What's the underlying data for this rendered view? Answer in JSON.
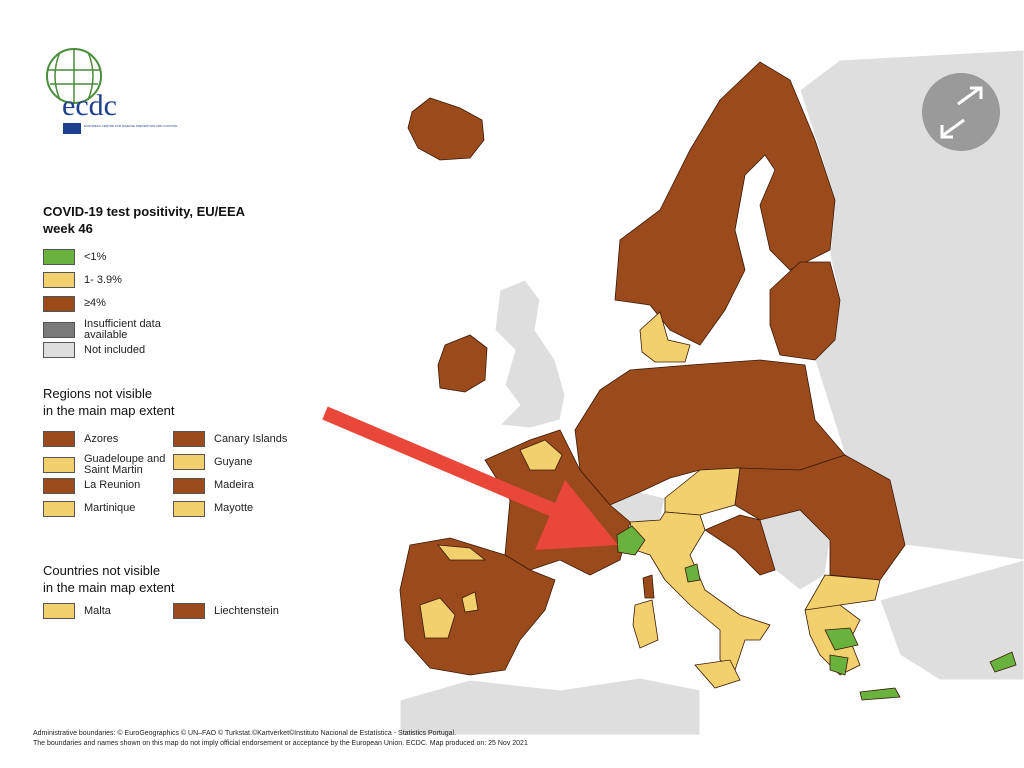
{
  "logo": {
    "name": "ecdc",
    "subtitle": "EUROPEAN CENTRE FOR DISEASE PREVENTION AND CONTROL"
  },
  "legend": {
    "title_lines": [
      "COVID-19 test positivity, EU/EEA",
      "week 46"
    ],
    "items": [
      {
        "label": "<1%",
        "color": "#6ab23e"
      },
      {
        "label": "1- 3.9%",
        "color": "#f3d06e"
      },
      {
        "label": "≥4%",
        "color": "#9b4a1b"
      },
      {
        "label": "Insufficient data available",
        "color": "#7a7a7a"
      },
      {
        "label": "Not included",
        "color": "#dedede"
      }
    ]
  },
  "regions": {
    "title_lines": [
      "Regions not visible",
      "in the main map extent"
    ],
    "items": [
      {
        "label": "Azores",
        "color": "#9b4a1b"
      },
      {
        "label": "Canary Islands",
        "color": "#9b4a1b"
      },
      {
        "label": "Guadeloupe and Saint Martin",
        "color": "#f3d06e"
      },
      {
        "label": "Guyane",
        "color": "#f3d06e"
      },
      {
        "label": "La Reunion",
        "color": "#9b4a1b"
      },
      {
        "label": "Madeira",
        "color": "#9b4a1b"
      },
      {
        "label": "Martinique",
        "color": "#f3d06e"
      },
      {
        "label": "Mayotte",
        "color": "#f3d06e"
      }
    ]
  },
  "countries": {
    "title_lines": [
      "Countries not visible",
      "in the main map extent"
    ],
    "items": [
      {
        "label": "Malta",
        "color": "#f3d06e"
      },
      {
        "label": "Liechtenstein",
        "color": "#9b4a1b"
      }
    ]
  },
  "footer": [
    "Administrative boundaries: © EuroGeographics © UN–FAO © Turkstat.©Kartverket©Instituto Nacional de Estatística - Statistics Portugal.",
    "The boundaries and names shown on this map do not imply official endorsement or acceptance by the European Union. ECDC. Map produced on: 25 Nov 2021"
  ]
}
